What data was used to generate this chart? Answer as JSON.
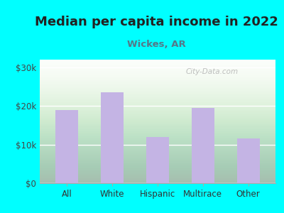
{
  "title": "Median per capita income in 2022",
  "subtitle": "Wickes, AR",
  "categories": [
    "All",
    "White",
    "Hispanic",
    "Multirace",
    "Other"
  ],
  "values": [
    19000,
    23500,
    12000,
    19500,
    11500
  ],
  "bar_color": "#C4B4E4",
  "title_color": "#222222",
  "subtitle_color": "#557788",
  "background_outer": "#00FFFF",
  "background_top": "#f5fff5",
  "background_bottom": "#c8eec8",
  "ylim": [
    0,
    32000
  ],
  "yticks": [
    0,
    10000,
    20000,
    30000
  ],
  "watermark": "City-Data.com",
  "title_fontsize": 13,
  "subtitle_fontsize": 9.5,
  "tick_fontsize": 8.5,
  "bar_width": 0.5
}
